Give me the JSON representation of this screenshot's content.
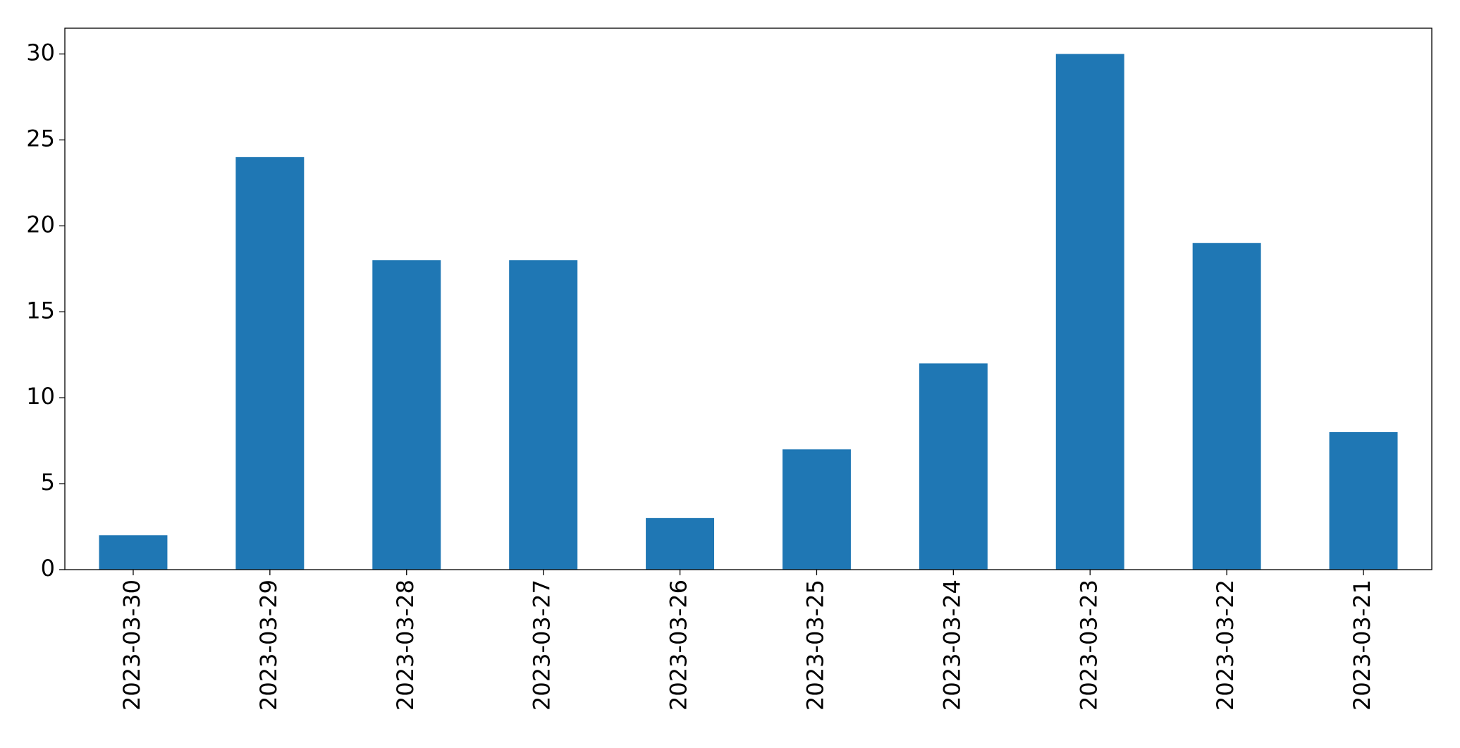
{
  "chart_data": {
    "type": "bar",
    "categories": [
      "2023-03-30",
      "2023-03-29",
      "2023-03-28",
      "2023-03-27",
      "2023-03-26",
      "2023-03-25",
      "2023-03-24",
      "2023-03-23",
      "2023-03-22",
      "2023-03-21"
    ],
    "values": [
      2,
      24,
      18,
      18,
      3,
      7,
      12,
      30,
      19,
      8
    ],
    "color": "#1f77b4",
    "ylim": [
      0,
      31.5
    ],
    "yticks": [
      0,
      5,
      10,
      15,
      20,
      25,
      30
    ],
    "grid": false
  }
}
